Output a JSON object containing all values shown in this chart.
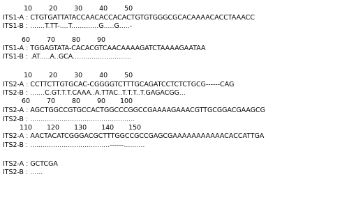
{
  "lines": [
    {
      "type": "ruler",
      "text": "          10        20        30        40        50"
    },
    {
      "type": "seq",
      "text": "ITS1-A : CTGTGATTATACCAACACCACACTGTGTGGGCGCACAAAACACCTAAACC"
    },
    {
      "type": "seq",
      "text": "ITS1-B : .......T.TT-....T.............G.....G.....-"
    },
    {
      "type": "blank"
    },
    {
      "type": "ruler",
      "text": "         60        70        80        90"
    },
    {
      "type": "seq",
      "text": "ITS1-A : TGGAGTATA-CACACGTCAACAAAAGATCTAAAAGAATAA"
    },
    {
      "type": "seq",
      "text": "ITS1-B : .AT.....A..GCA............................"
    },
    {
      "type": "blank"
    },
    {
      "type": "blank"
    },
    {
      "type": "ruler",
      "text": "          10        20        30        40        50"
    },
    {
      "type": "seq",
      "text": "ITS2-A : CCTTCTTGTGCAC-CGGGGTCTTTGCAGATCCTCTCTGCG------CAG"
    },
    {
      "type": "seq",
      "text": "ITS2-B : .......C.GT.T.T.CAAA..A.TTAC..T.T.T..T.GAGACGG..."
    },
    {
      "type": "ruler",
      "text": "         60        70        80        90       100"
    },
    {
      "type": "seq",
      "text": "ITS2-A : AGCTGGCCGTGCCACTGGCCCGGCCGAAAAGAAACGTTGCGGACGAAGCG"
    },
    {
      "type": "seq",
      "text": "ITS2-B : .................................................."
    },
    {
      "type": "ruler",
      "text": "        110       120       130       140       150"
    },
    {
      "type": "seq",
      "text": "ITS2-A : AACTACATCGGGACGCTTTGGCCGCCGAGCGAAAAAAAAAAACACCATTGA"
    },
    {
      "type": "seq",
      "text": "ITS2-B : ......................................------.........."
    },
    {
      "type": "blank"
    },
    {
      "type": "blank"
    },
    {
      "type": "seq",
      "text": "ITS2-A : GCTCGA"
    },
    {
      "type": "seq",
      "text": "ITS2-B : ......"
    }
  ],
  "font_family": "Courier New",
  "font_size": 6.8,
  "text_color": "#000000",
  "bg_color": "#ffffff",
  "fig_width": 5.0,
  "fig_height": 3.03,
  "dpi": 100
}
